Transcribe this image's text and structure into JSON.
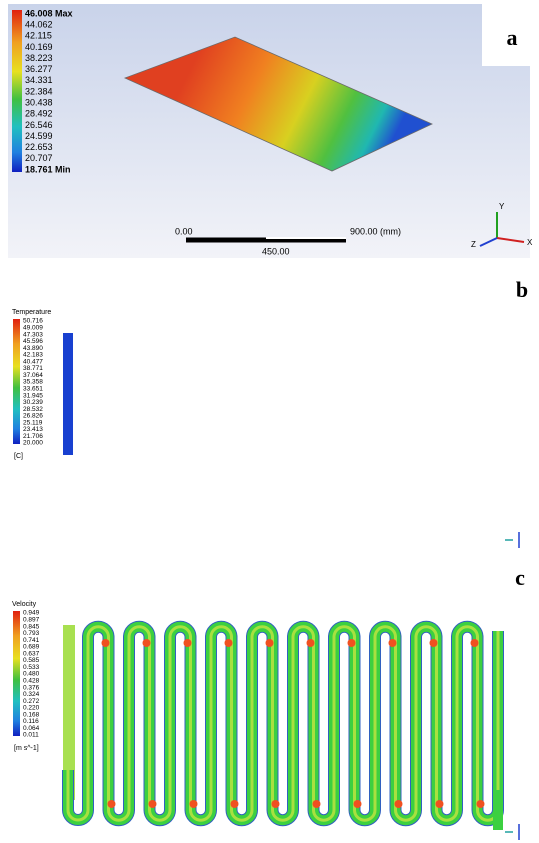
{
  "panel_a": {
    "label": "a",
    "legend": [
      "46.008 Max",
      "44.062",
      "42.115",
      "40.169",
      "38.223",
      "36.277",
      "34.331",
      "32.384",
      "30.438",
      "28.492",
      "26.546",
      "24.599",
      "22.653",
      "20.707",
      "18.761 Min"
    ],
    "scale_bar": {
      "start": "0.00",
      "end": "900.00 (mm)",
      "mid": "450.00"
    },
    "axes": {
      "y": "Y",
      "x": "X",
      "z": "Z"
    }
  },
  "panel_b": {
    "label": "b",
    "legend_title": "Temperature",
    "legend": [
      "50.716",
      "49.009",
      "47.303",
      "45.596",
      "43.890",
      "42.183",
      "40.477",
      "38.771",
      "37.064",
      "35.358",
      "33.651",
      "31.945",
      "30.239",
      "28.532",
      "26.826",
      "25.119",
      "23.413",
      "21.706",
      "20.000"
    ],
    "unit": "[C]"
  },
  "panel_c": {
    "label": "c",
    "legend_title": "Velocity",
    "legend": [
      "0.949",
      "0.897",
      "0.845",
      "0.793",
      "0.741",
      "0.689",
      "0.637",
      "0.585",
      "0.533",
      "0.480",
      "0.428",
      "0.376",
      "0.324",
      "0.272",
      "0.220",
      "0.168",
      "0.116",
      "0.064",
      "0.011"
    ],
    "unit": "[m s^-1]"
  }
}
